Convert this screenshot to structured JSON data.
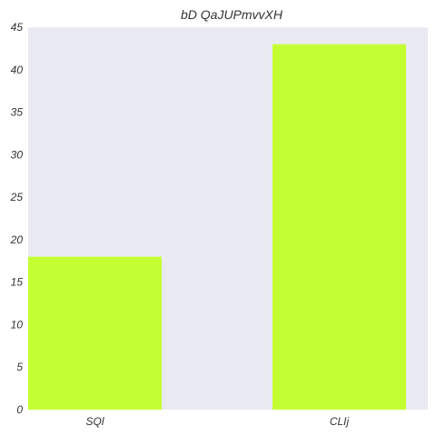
{
  "chart_data": {
    "type": "bar",
    "title": "bD QaJUPmvvXH",
    "categories": [
      "SQl",
      "CLIj"
    ],
    "values": [
      18,
      43
    ],
    "ylim": [
      0,
      45
    ],
    "yticks": [
      0,
      5,
      10,
      15,
      20,
      25,
      30,
      35,
      40,
      45
    ],
    "xlabel": "",
    "ylabel": "",
    "grid": false,
    "colors": {
      "bar": "#c4ff33",
      "plot_background": "#eaeaf2"
    }
  }
}
